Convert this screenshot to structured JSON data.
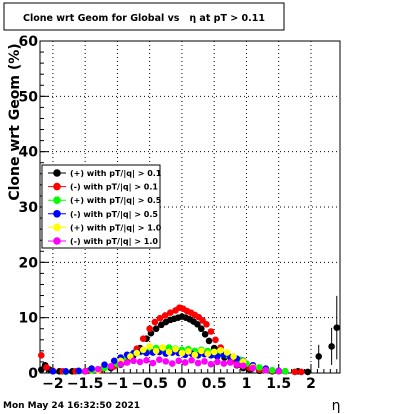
{
  "chart_data": {
    "type": "scatter",
    "title": "Clone wrt Geom for Global vs   η at pT > 0.11",
    "xlabel": "η",
    "ylabel": "Clone wrt Geom (%)",
    "timestamp": "Mon May 24 16:32:50 2021",
    "xlim": [
      -2.2,
      2.45
    ],
    "ylim": [
      0,
      60
    ],
    "x_ticks": [
      -2,
      -1.5,
      -1,
      -0.5,
      0,
      0.5,
      1,
      1.5,
      2
    ],
    "x_tick_labels": [
      "−2",
      "−1.5",
      "−1",
      "−0.5",
      "0",
      "0.5",
      "1",
      "1.5",
      "2"
    ],
    "y_ticks": [
      0,
      10,
      20,
      30,
      40,
      50,
      60
    ],
    "y_tick_labels": [
      "0",
      "10",
      "20",
      "30",
      "40",
      "50",
      "60"
    ],
    "grid": true,
    "legend_position": "left-middle",
    "series": [
      {
        "name": "(+) with pT/|q| > 0.1",
        "color": "#000000",
        "x": [
          -2.18,
          -2.12,
          -2.05,
          -1.9,
          -1.7,
          -1.5,
          -1.3,
          -1.1,
          -0.95,
          -0.85,
          -0.75,
          -0.65,
          -0.55,
          -0.48,
          -0.4,
          -0.32,
          -0.25,
          -0.18,
          -0.12,
          -0.06,
          0.0,
          0.06,
          0.12,
          0.18,
          0.24,
          0.3,
          0.36,
          0.42,
          0.5,
          0.58,
          0.66,
          0.75,
          0.85,
          0.95,
          1.05,
          1.2,
          1.4,
          1.6,
          1.8,
          1.95,
          2.12,
          2.32,
          2.4
        ],
        "y": [
          0.6,
          1.4,
          0.6,
          0.3,
          0.3,
          0.3,
          0.5,
          0.9,
          1.5,
          2.2,
          3.2,
          4.5,
          6.2,
          7.2,
          8.0,
          8.7,
          9.2,
          9.6,
          9.8,
          10.0,
          10.2,
          10.0,
          9.7,
          9.3,
          8.8,
          8.0,
          7.0,
          5.8,
          4.5,
          3.6,
          2.8,
          2.0,
          1.4,
          0.9,
          0.6,
          0.4,
          0.3,
          0.3,
          0.3,
          0.2,
          3.0,
          4.8,
          8.2
        ]
      },
      {
        "name": "(-) with pT/|q| > 0.1",
        "color": "#ff0000",
        "x": [
          -2.18,
          -2.1,
          -2.0,
          -1.85,
          -1.65,
          -1.45,
          -1.25,
          -1.05,
          -0.9,
          -0.8,
          -0.7,
          -0.6,
          -0.5,
          -0.42,
          -0.34,
          -0.26,
          -0.18,
          -0.1,
          -0.04,
          0.02,
          0.08,
          0.14,
          0.2,
          0.26,
          0.32,
          0.38,
          0.45,
          0.52,
          0.6,
          0.7,
          0.8,
          0.92,
          1.05,
          1.2,
          1.4,
          1.6,
          1.75,
          1.85
        ],
        "y": [
          3.2,
          1.0,
          0.4,
          0.3,
          0.3,
          0.4,
          0.6,
          1.2,
          2.0,
          3.0,
          4.4,
          6.2,
          8.0,
          9.2,
          9.9,
          10.4,
          10.9,
          11.3,
          11.8,
          11.6,
          11.2,
          10.9,
          10.5,
          10.1,
          9.5,
          8.8,
          7.5,
          6.0,
          4.6,
          3.3,
          2.2,
          1.4,
          0.9,
          0.6,
          0.4,
          0.3,
          0.2,
          0.2
        ]
      },
      {
        "name": "(+) with pT/|q| > 0.5",
        "color": "#00ff00",
        "x": [
          -1.8,
          -1.6,
          -1.4,
          -1.2,
          -1.0,
          -0.9,
          -0.8,
          -0.7,
          -0.6,
          -0.5,
          -0.4,
          -0.3,
          -0.2,
          -0.1,
          0.0,
          0.1,
          0.2,
          0.3,
          0.4,
          0.5,
          0.6,
          0.7,
          0.8,
          0.9,
          1.0,
          1.2,
          1.4,
          1.6
        ],
        "y": [
          0.2,
          0.3,
          0.5,
          0.9,
          1.6,
          2.3,
          3.1,
          3.6,
          3.9,
          4.1,
          4.5,
          4.3,
          4.6,
          4.4,
          4.2,
          4.3,
          4.0,
          4.2,
          4.0,
          3.8,
          3.5,
          3.2,
          2.9,
          2.4,
          1.7,
          1.0,
          0.5,
          0.3
        ]
      },
      {
        "name": "(-) with pT/|q| > 0.5",
        "color": "#0000ff",
        "x": [
          -2.0,
          -1.8,
          -1.6,
          -1.4,
          -1.2,
          -1.05,
          -0.95,
          -0.85,
          -0.75,
          -0.65,
          -0.55,
          -0.45,
          -0.35,
          -0.25,
          -0.15,
          -0.05,
          0.05,
          0.15,
          0.25,
          0.35,
          0.45,
          0.55,
          0.65,
          0.75,
          0.85,
          0.95,
          1.1,
          1.3,
          1.5
        ],
        "y": [
          0.3,
          0.3,
          0.4,
          0.8,
          1.5,
          2.2,
          2.8,
          3.3,
          3.6,
          3.8,
          3.6,
          3.7,
          3.8,
          3.5,
          3.7,
          3.6,
          3.3,
          3.5,
          3.2,
          3.4,
          3.2,
          3.0,
          3.3,
          2.9,
          2.6,
          2.2,
          1.4,
          0.8,
          0.4
        ]
      },
      {
        "name": "(+) with pT/|q| > 1.0",
        "color": "#ffff00",
        "x": [
          -1.3,
          -1.1,
          -0.95,
          -0.8,
          -0.7,
          -0.6,
          -0.5,
          -0.4,
          -0.3,
          -0.2,
          -0.1,
          0.0,
          0.1,
          0.2,
          0.3,
          0.4,
          0.5,
          0.6,
          0.7,
          0.8,
          0.95,
          1.1,
          1.3
        ],
        "y": [
          0.5,
          1.2,
          2.2,
          3.0,
          3.6,
          4.2,
          4.8,
          4.0,
          4.6,
          3.8,
          4.3,
          3.6,
          3.9,
          3.3,
          4.0,
          3.5,
          3.8,
          4.1,
          3.7,
          3.0,
          2.1,
          1.1,
          0.5
        ]
      },
      {
        "name": "(-) with pT/|q| > 1.0",
        "color": "#ff00ff",
        "x": [
          -1.5,
          -1.3,
          -1.1,
          -0.95,
          -0.85,
          -0.75,
          -0.65,
          -0.55,
          -0.45,
          -0.35,
          -0.25,
          -0.15,
          -0.05,
          0.05,
          0.15,
          0.25,
          0.35,
          0.45,
          0.55,
          0.65,
          0.75,
          0.85,
          0.95,
          1.1,
          1.3,
          1.5
        ],
        "y": [
          0.3,
          0.7,
          1.2,
          1.6,
          1.9,
          2.2,
          2.0,
          2.3,
          1.8,
          2.4,
          2.1,
          1.7,
          2.2,
          1.9,
          2.3,
          1.8,
          2.1,
          1.6,
          2.0,
          1.7,
          1.9,
          1.5,
          1.3,
          0.9,
          0.5,
          0.3
        ]
      }
    ]
  }
}
